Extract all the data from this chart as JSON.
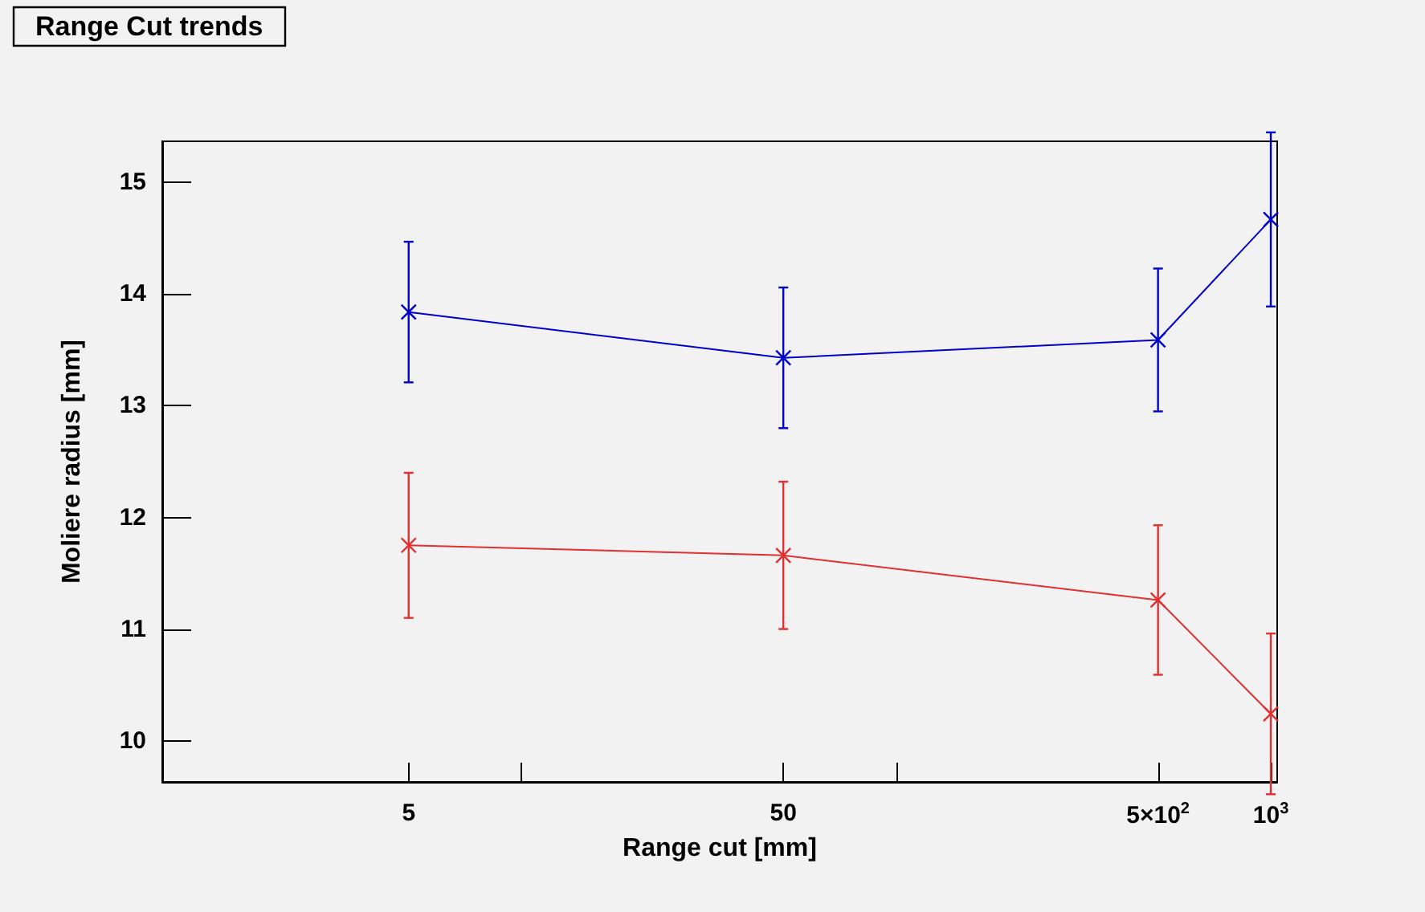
{
  "chart_data": {
    "type": "line",
    "title": "Range Cut trends",
    "xlabel": "Range cut [mm]",
    "ylabel": "Moliere radius [mm]",
    "log": "x",
    "marker": "cross",
    "grid": false,
    "line_style": "solid",
    "xlim": [
      1.1,
      1040
    ],
    "xticks": [
      5,
      {
        "value": 10,
        "label": null
      },
      50,
      {
        "value": 100,
        "label": null
      },
      {
        "value": 500,
        "label": "5×10$^{2}$"
      },
      {
        "value": 1000,
        "label": "10$^{3}$"
      }
    ],
    "ylim": [
      9.63,
      15.37
    ],
    "yticks": [
      10,
      11,
      12,
      13,
      14,
      15
    ],
    "x": [
      5,
      50,
      500,
      1000
    ],
    "series": [
      {
        "color": "#0000cc",
        "values": [
          13.84,
          13.43,
          13.59,
          14.67
        ],
        "errors": [
          0.63,
          0.63,
          0.64,
          0.78
        ]
      },
      {
        "color": "#e03030",
        "values": [
          11.75,
          11.66,
          11.26,
          10.24
        ],
        "errors": [
          0.65,
          0.66,
          0.67,
          0.72
        ]
      }
    ]
  }
}
